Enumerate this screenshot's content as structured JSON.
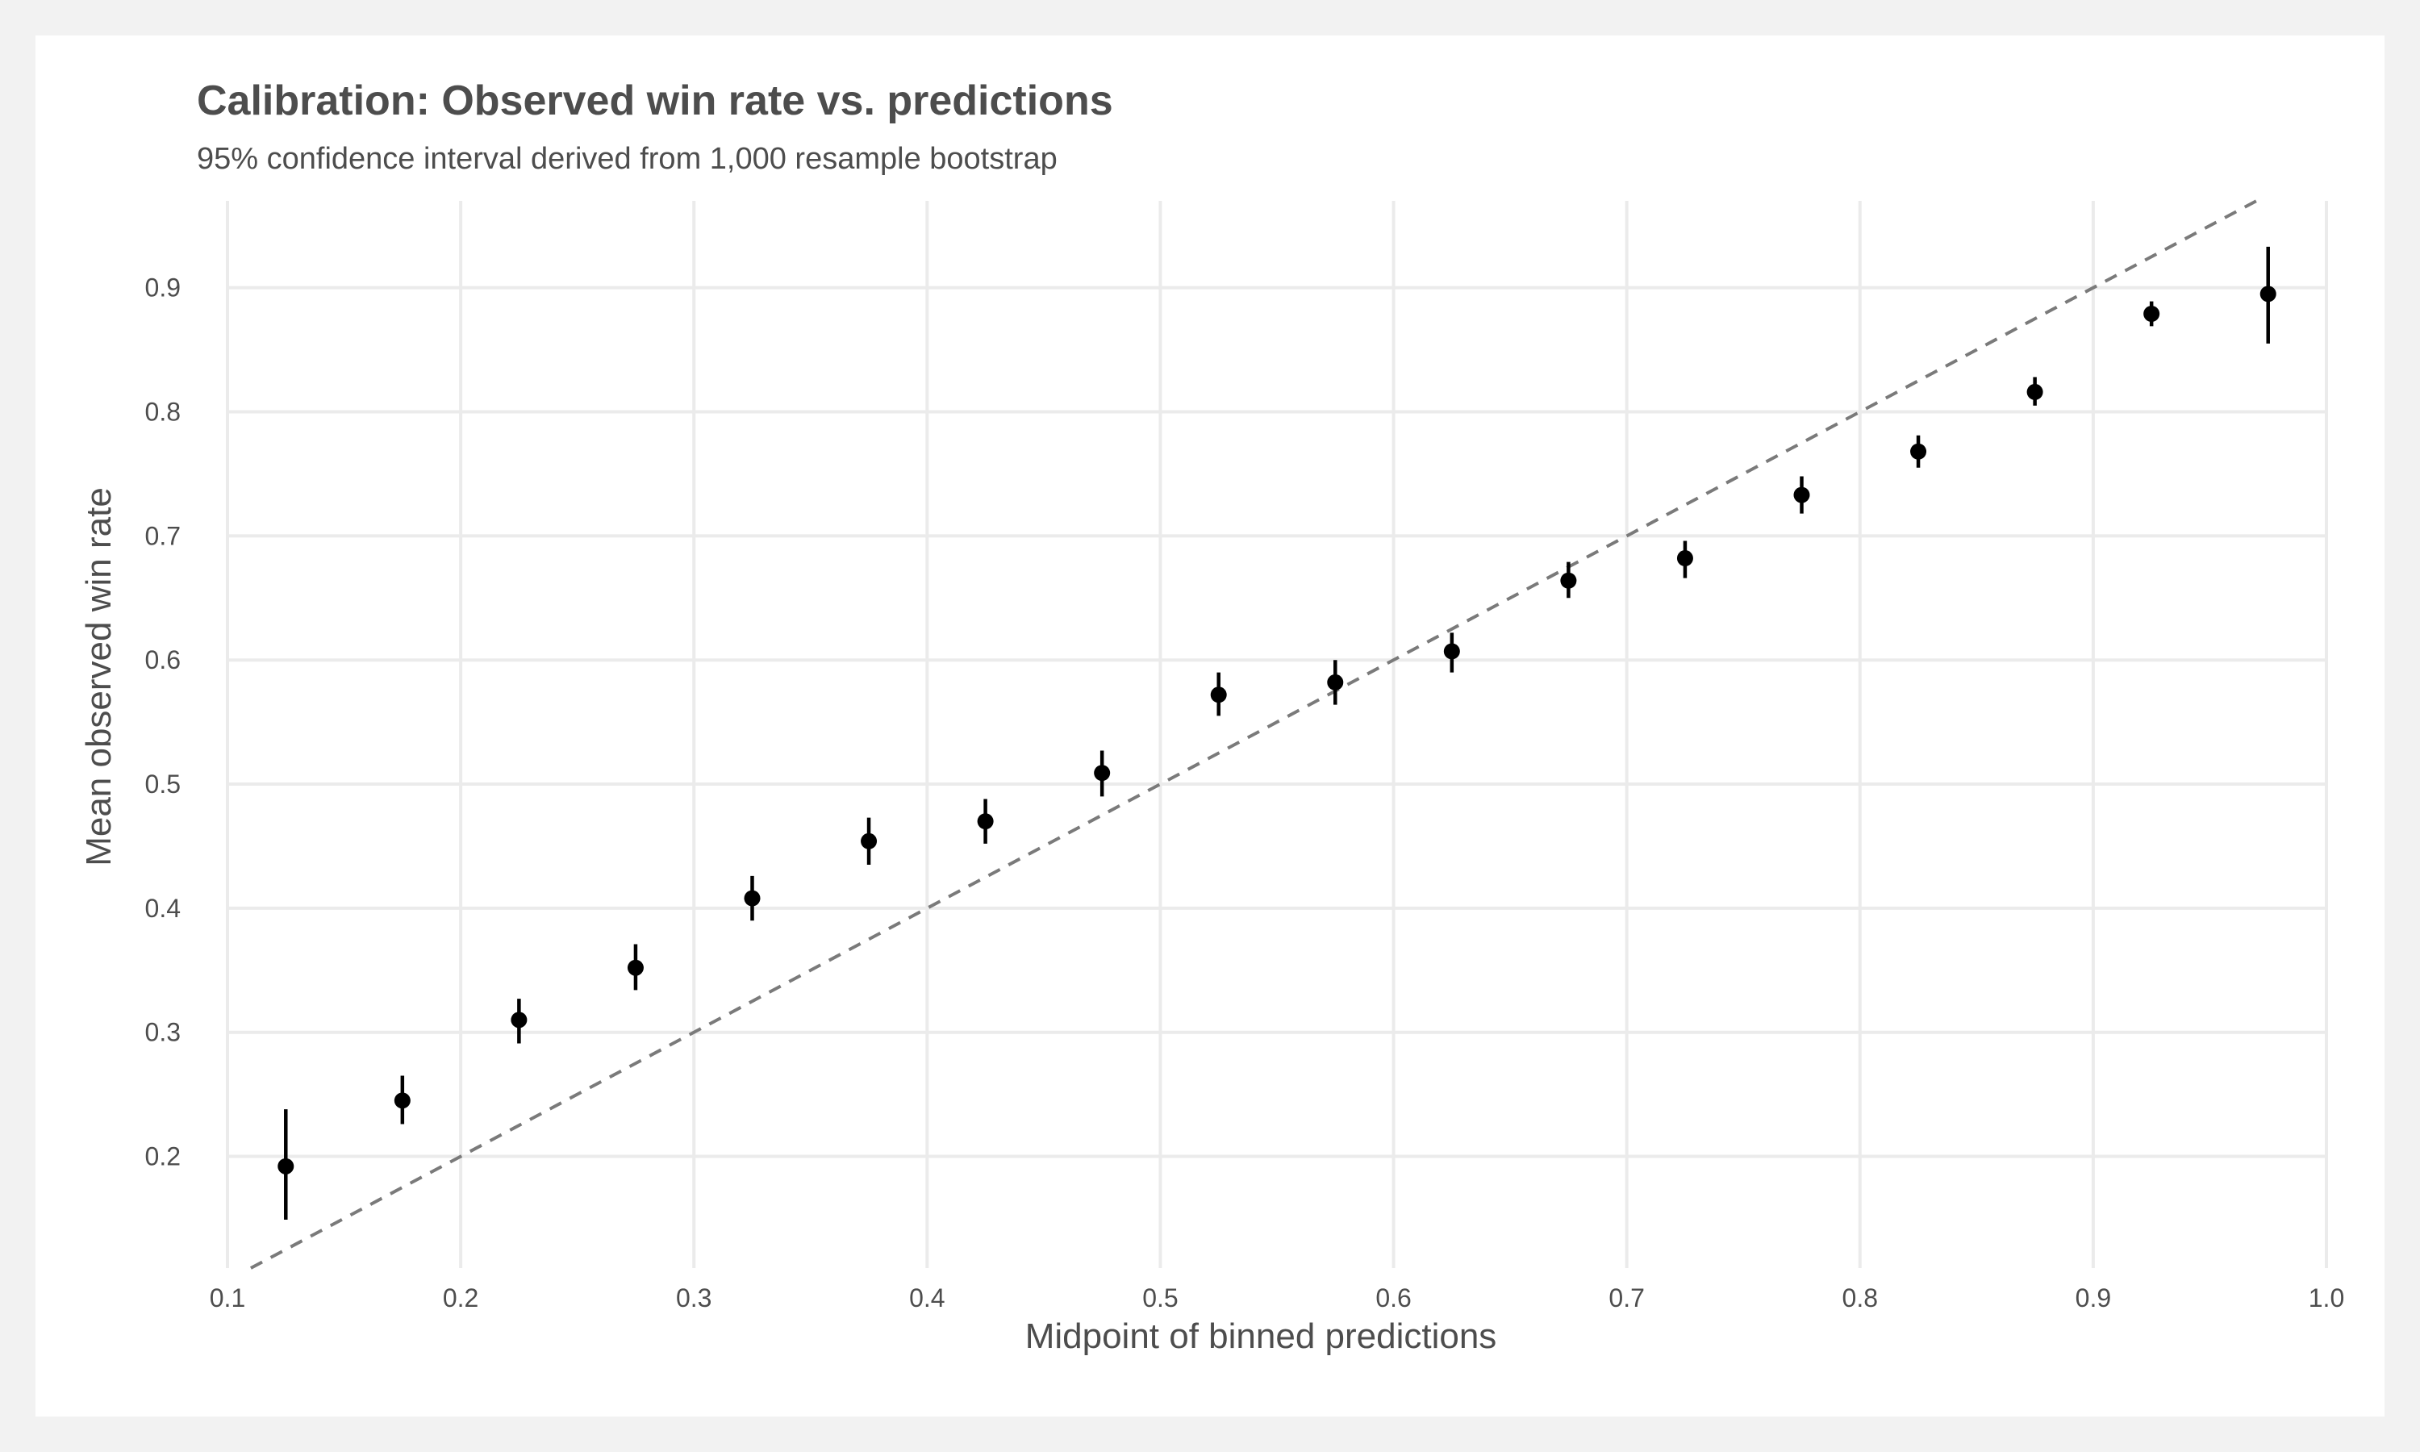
{
  "chart_data": {
    "type": "scatter",
    "title": "Calibration: Observed win rate vs. predictions",
    "subtitle": "95% confidence interval derived from 1,000 resample bootstrap",
    "xlabel": "Midpoint of binned predictions",
    "ylabel": "Mean observed win rate",
    "xlim": [
      0.1,
      1.0
    ],
    "ylim": [
      0.11,
      0.97
    ],
    "xticks": [
      "0.1",
      "0.2",
      "0.3",
      "0.4",
      "0.5",
      "0.6",
      "0.7",
      "0.8",
      "0.9",
      "1.0"
    ],
    "yticks": [
      "0.2",
      "0.3",
      "0.4",
      "0.5",
      "0.6",
      "0.7",
      "0.8",
      "0.9"
    ],
    "grid": true,
    "reference_line": "y = x (dashed, gray)",
    "points": [
      {
        "x": 0.125,
        "y": 0.192,
        "lo": 0.149,
        "hi": 0.238
      },
      {
        "x": 0.175,
        "y": 0.245,
        "lo": 0.226,
        "hi": 0.265
      },
      {
        "x": 0.225,
        "y": 0.31,
        "lo": 0.291,
        "hi": 0.327
      },
      {
        "x": 0.275,
        "y": 0.352,
        "lo": 0.334,
        "hi": 0.371
      },
      {
        "x": 0.325,
        "y": 0.408,
        "lo": 0.39,
        "hi": 0.426
      },
      {
        "x": 0.375,
        "y": 0.454,
        "lo": 0.435,
        "hi": 0.473
      },
      {
        "x": 0.425,
        "y": 0.47,
        "lo": 0.452,
        "hi": 0.488
      },
      {
        "x": 0.475,
        "y": 0.509,
        "lo": 0.49,
        "hi": 0.527
      },
      {
        "x": 0.525,
        "y": 0.572,
        "lo": 0.555,
        "hi": 0.59
      },
      {
        "x": 0.575,
        "y": 0.582,
        "lo": 0.564,
        "hi": 0.6
      },
      {
        "x": 0.625,
        "y": 0.607,
        "lo": 0.59,
        "hi": 0.622
      },
      {
        "x": 0.675,
        "y": 0.664,
        "lo": 0.65,
        "hi": 0.679
      },
      {
        "x": 0.725,
        "y": 0.682,
        "lo": 0.666,
        "hi": 0.696
      },
      {
        "x": 0.775,
        "y": 0.733,
        "lo": 0.718,
        "hi": 0.748
      },
      {
        "x": 0.825,
        "y": 0.768,
        "lo": 0.755,
        "hi": 0.781
      },
      {
        "x": 0.875,
        "y": 0.816,
        "lo": 0.805,
        "hi": 0.828
      },
      {
        "x": 0.925,
        "y": 0.879,
        "lo": 0.869,
        "hi": 0.889
      },
      {
        "x": 0.975,
        "y": 0.895,
        "lo": 0.855,
        "hi": 0.933
      }
    ]
  }
}
